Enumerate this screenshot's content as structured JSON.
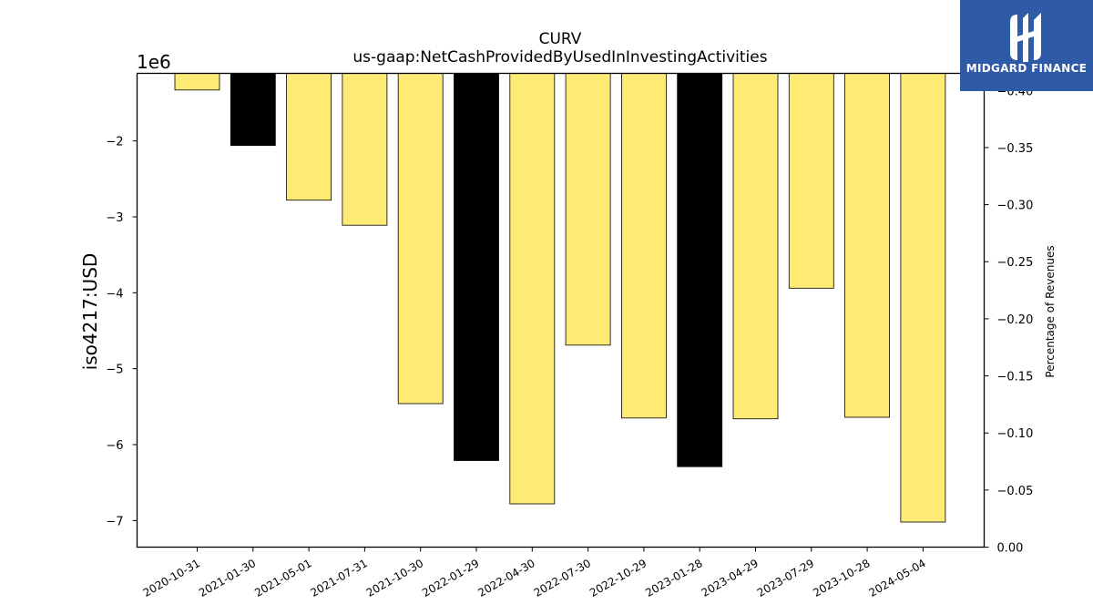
{
  "chart_data": {
    "type": "bar",
    "title": "CURV",
    "subtitle": "us-gaap:NetCashProvidedByUsedInInvestingActivities",
    "ylabel": "iso4217:USD",
    "y2label": "Percentage of Revenues",
    "offset_label": "1e6",
    "categories": [
      "2020-10-31",
      "2021-01-30",
      "2021-05-01",
      "2021-07-31",
      "2021-10-30",
      "2022-01-29",
      "2022-04-30",
      "2022-07-30",
      "2022-10-29",
      "2023-01-28",
      "2023-04-29",
      "2023-07-29",
      "2023-10-28",
      "2024-05-04"
    ],
    "values": [
      -1330000,
      -2060000,
      -2780000,
      -3110000,
      -5460000,
      -6210000,
      -6780000,
      -4690000,
      -5650000,
      -6290000,
      -5660000,
      -3940000,
      -5640000,
      -7020000
    ],
    "bar_colors": [
      "#fdeb76",
      "#000000",
      "#fdeb76",
      "#fdeb76",
      "#fdeb76",
      "#000000",
      "#fdeb76",
      "#fdeb76",
      "#fdeb76",
      "#000000",
      "#fdeb76",
      "#fdeb76",
      "#fdeb76",
      "#fdeb76"
    ],
    "ylim": [
      -7350000,
      -1110000
    ],
    "yticks": [
      -2000000,
      -3000000,
      -4000000,
      -5000000,
      -6000000,
      -7000000
    ],
    "ytick_labels": [
      "−2",
      "−3",
      "−4",
      "−5",
      "−6",
      "−7"
    ],
    "y2lim": [
      0,
      -0.415
    ],
    "y2ticks": [
      -0.4,
      -0.35,
      -0.3,
      -0.25,
      -0.2,
      -0.15,
      -0.1,
      -0.05,
      0.0
    ],
    "y2tick_labels": [
      "−0.40",
      "−0.35",
      "−0.30",
      "−0.25",
      "−0.20",
      "−0.15",
      "−0.10",
      "−0.05",
      "0.00"
    ],
    "grid": false
  },
  "logo": {
    "text": "MIDGARD FINANCE",
    "accent": "#2f5aa7"
  }
}
